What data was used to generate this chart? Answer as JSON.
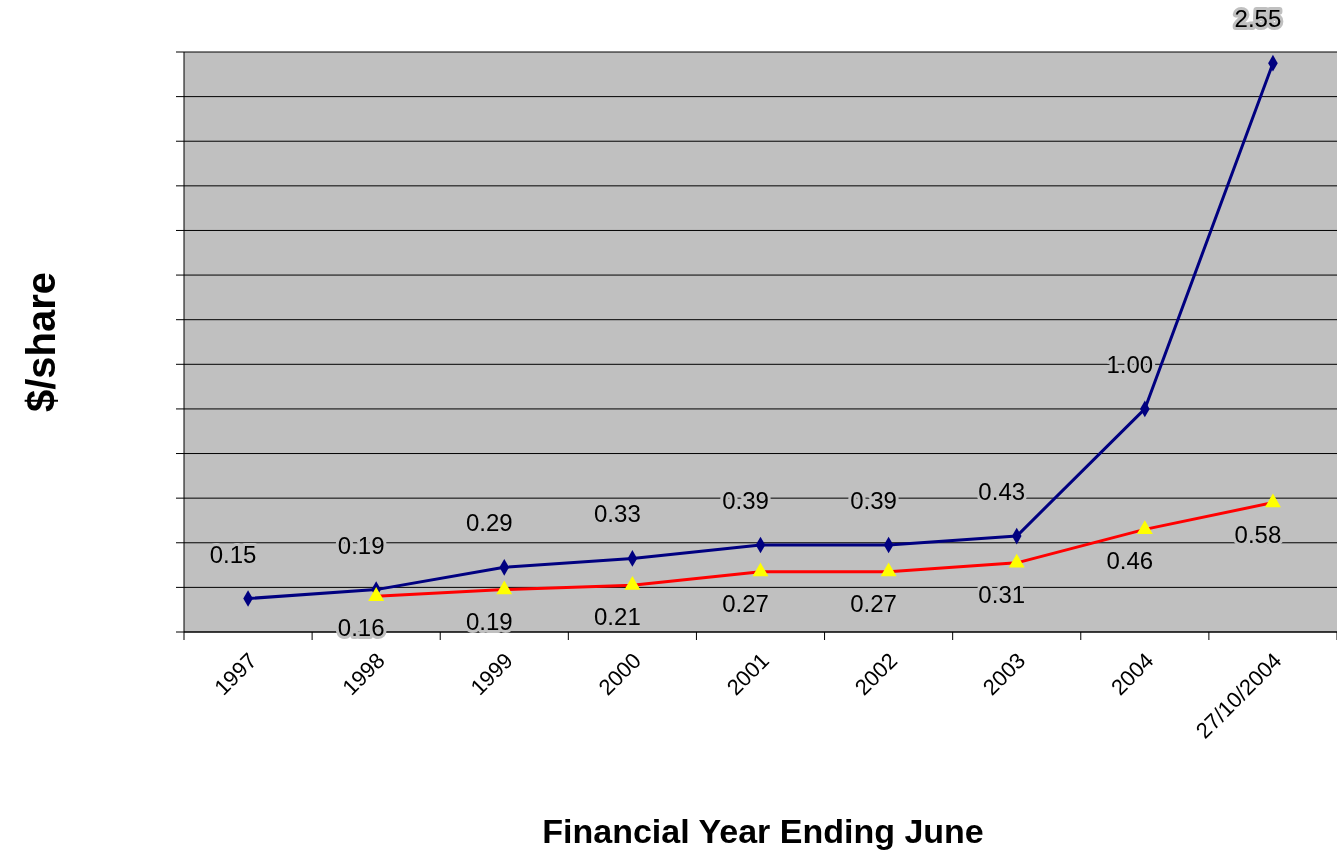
{
  "chart_data": {
    "type": "line",
    "xlabel": "Financial Year Ending June",
    "ylabel": "$/share",
    "categories": [
      "1997",
      "1998",
      "1999",
      "2000",
      "2001",
      "2002",
      "2003",
      "2004",
      "27/10/2004"
    ],
    "series": [
      {
        "color": "#000080",
        "marker": "diamond",
        "values": [
          0.15,
          0.19,
          0.29,
          0.33,
          0.39,
          0.39,
          0.43,
          1.0,
          2.55
        ],
        "value_labels": [
          "0.15",
          "0.19",
          "0.29",
          "0.33",
          "0.39",
          "0.39",
          "0.43",
          "1.00",
          "2.55"
        ]
      },
      {
        "color": "#ff0000",
        "marker": "triangle",
        "values": [
          null,
          0.16,
          0.19,
          0.21,
          0.27,
          0.27,
          0.31,
          0.46,
          0.58
        ],
        "value_labels": [
          null,
          "0.16",
          "0.19",
          "0.21",
          "0.27",
          "0.27",
          "0.31",
          "0.46",
          "0.58"
        ]
      }
    ],
    "ylim": [
      0,
      2.6
    ],
    "yticks": [
      {
        "value": 0,
        "label": null
      },
      {
        "value": 0.2,
        "label": null
      },
      {
        "value": 0.4,
        "label": null
      },
      {
        "value": 0.6,
        "label": null
      },
      {
        "value": 0.8,
        "label": null
      },
      {
        "value": 1.0,
        "label": null
      },
      {
        "value": 1.2,
        "label": null
      },
      {
        "value": 1.4,
        "label": null
      },
      {
        "value": 1.6,
        "label": null
      },
      {
        "value": 1.8,
        "label": null
      },
      {
        "value": 2.0,
        "label": null
      },
      {
        "value": 2.2,
        "label": null
      },
      {
        "value": 2.4,
        "label": null
      },
      {
        "value": 2.6,
        "label": null
      }
    ],
    "grid": "y",
    "tick_labels": "x",
    "line_style": "solid"
  }
}
